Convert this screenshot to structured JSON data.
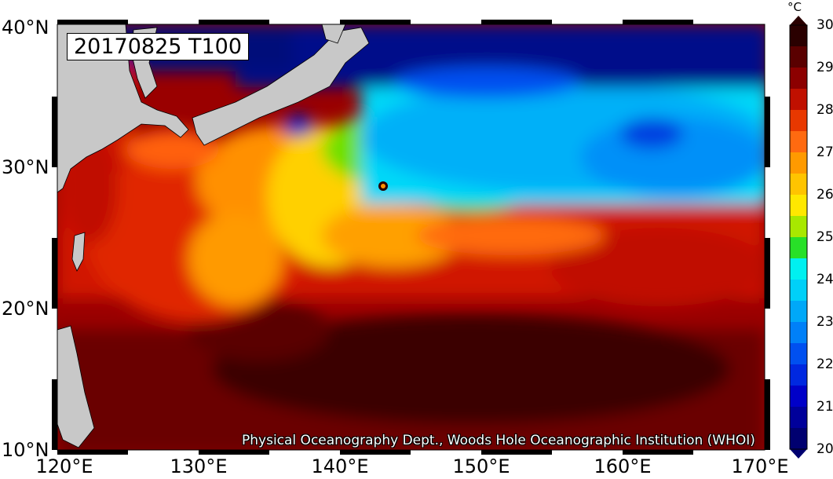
{
  "map": {
    "title": "20170825 T100",
    "credit": "Physical Oceanography Dept., Woods Hole Oceanographic Institution (WHOI)",
    "lat_ticks": [
      "40°N",
      "30°N",
      "20°N",
      "10°N"
    ],
    "lon_ticks": [
      "120°E",
      "130°E",
      "140°E",
      "150°E",
      "160°E",
      "170°E"
    ]
  },
  "colorbar": {
    "unit": "°C",
    "labels": [
      "30",
      "29",
      "28",
      "27",
      "26",
      "25",
      "24",
      "23",
      "22",
      "21",
      "20"
    ],
    "colors": [
      "#2a0000",
      "#5a0000",
      "#8c0000",
      "#c01000",
      "#e83800",
      "#ff6a10",
      "#ff9a00",
      "#ffc400",
      "#ffe800",
      "#a8e800",
      "#28e028",
      "#00f0f0",
      "#00d0f8",
      "#00a8f8",
      "#0080f8",
      "#0050f0",
      "#0028e0",
      "#0000c8",
      "#00009a",
      "#000070"
    ]
  },
  "colors": {
    "land": "#c8c8c8",
    "cold": "#00106a",
    "warm": "#8a0000"
  }
}
